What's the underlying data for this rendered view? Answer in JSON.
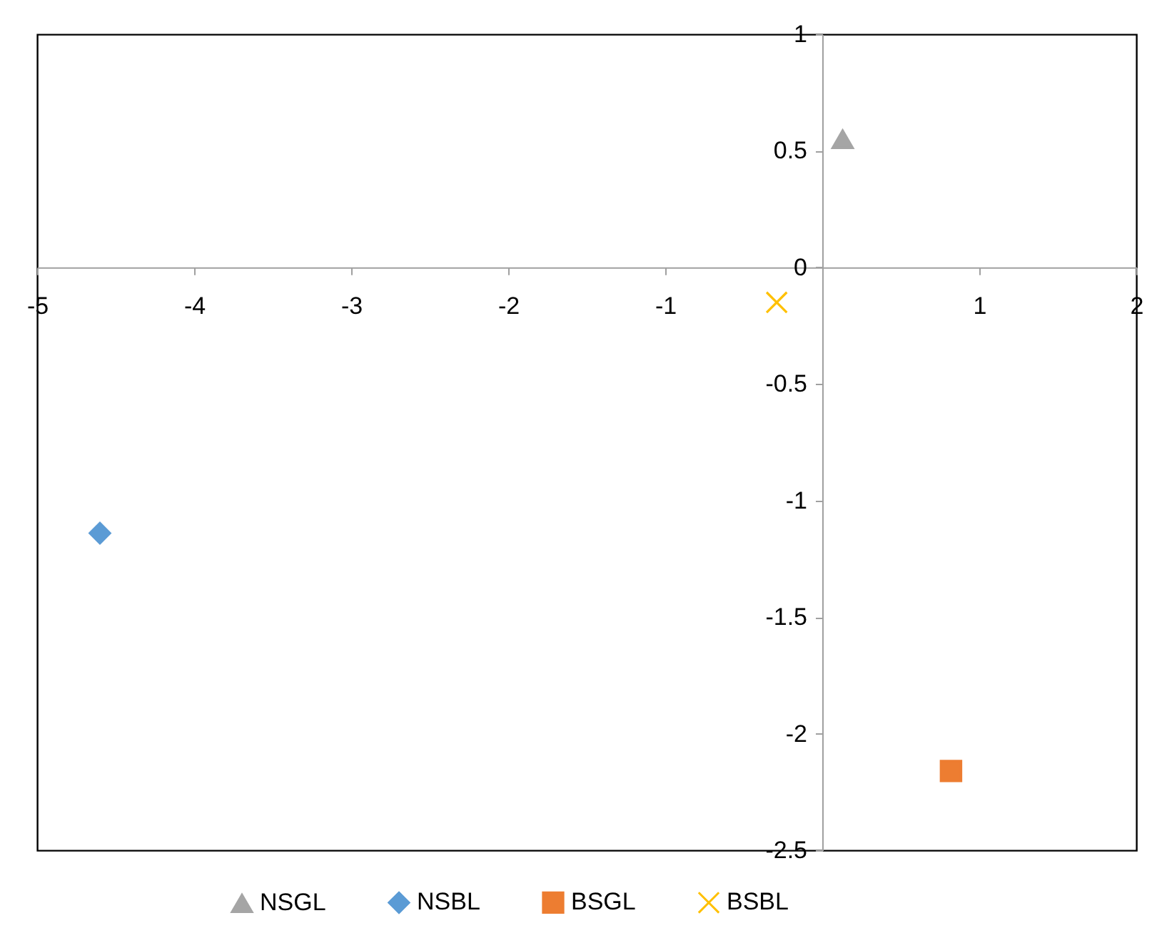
{
  "chart_data": {
    "type": "scatter",
    "xlim": [
      -5,
      2
    ],
    "xticks": [
      -5,
      -4,
      -3,
      -2,
      -1,
      {
        "value": 0,
        "label": null
      },
      1,
      2
    ],
    "ylim": [
      -2.5,
      1
    ],
    "yticks": [
      -2.5,
      -2,
      -1.5,
      -1,
      -0.5,
      0,
      0.5,
      1
    ],
    "grid": false,
    "legend": "bottom",
    "series": [
      {
        "name": "NSGL",
        "color": "#a5a5a5",
        "marker": "triangle",
        "x": [
          0.13
        ],
        "values": [
          0.55
        ]
      },
      {
        "name": "NSBL",
        "color": "#5b9bd5",
        "marker": "diamond",
        "x": [
          -4.6
        ],
        "values": [
          -1.14
        ]
      },
      {
        "name": "BSGL",
        "color": "#ed7d31",
        "marker": "square",
        "x": [
          0.82
        ],
        "values": [
          -2.16
        ]
      },
      {
        "name": "BSBL",
        "color": "#ffc000",
        "marker": "cross",
        "x": [
          -0.29
        ],
        "values": [
          -0.15
        ]
      }
    ]
  }
}
